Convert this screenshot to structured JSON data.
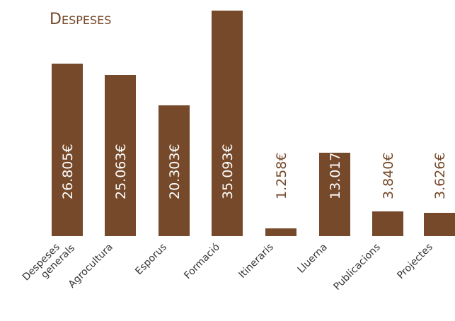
{
  "chart_data": {
    "type": "bar",
    "title": "Despeses",
    "categories": [
      "Despeses generals",
      "Agrocultura",
      "Esporus",
      "Formació",
      "Itineraris",
      "Lluerna",
      "Publicacions",
      "Projectes"
    ],
    "category_lines": [
      [
        "Despeses",
        "generals"
      ],
      [
        "Agrocultura"
      ],
      [
        "Esporus"
      ],
      [
        "Formació"
      ],
      [
        "Itineraris"
      ],
      [
        "Lluerna"
      ],
      [
        "Publicacions"
      ],
      [
        "Projectes"
      ]
    ],
    "values": [
      26805,
      25063,
      20303,
      35093,
      1258,
      13017,
      3840,
      3626
    ],
    "value_labels": [
      "26.805€",
      "25.063€",
      "20.303€",
      "35.093€",
      "1.258€",
      "13.017€",
      "3.840€",
      "3.626€"
    ],
    "ylim": [
      0,
      35093
    ],
    "grid": false,
    "legend": "none",
    "xlabel": "",
    "ylabel": ""
  },
  "colors": {
    "bar": "#75492a",
    "title": "#75492a",
    "label_on_bar": "#ffffff",
    "label_off_bar": "#75492a",
    "axis_text": "#333333"
  }
}
